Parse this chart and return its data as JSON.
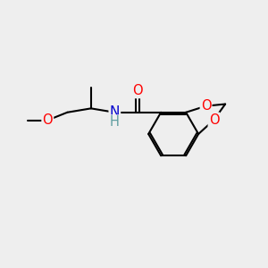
{
  "bg_color": "#eeeeee",
  "bond_color": "#000000",
  "bond_width": 1.5,
  "atom_colors": {
    "O": "#ff0000",
    "N": "#0000cd",
    "H": "#5f9ea0",
    "C": "#000000"
  },
  "font_size": 10.5
}
